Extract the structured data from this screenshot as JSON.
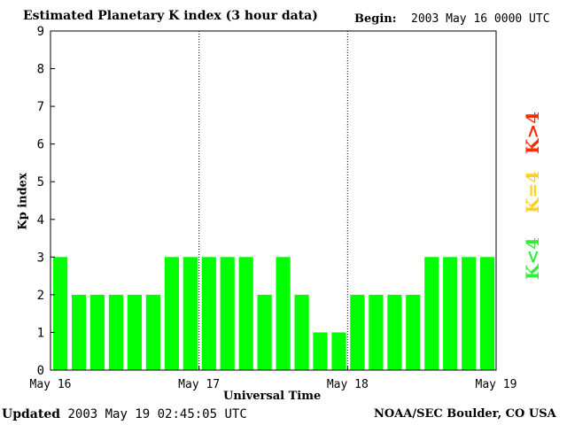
{
  "header": {
    "title": "Estimated Planetary K index (3 hour data)",
    "begin_label": "Begin:",
    "begin_value": "2003 May 16 0000 UTC"
  },
  "footer": {
    "updated_label": "Updated",
    "updated_value": "2003 May 19 02:45:05 UTC",
    "credit": "NOAA/SEC Boulder, CO USA"
  },
  "legend": {
    "high": "K>4",
    "equal": "K=4",
    "low": "K<4"
  },
  "colors": {
    "bar": "#00ff00",
    "low": "#33ee33",
    "equal": "#ffd21a",
    "high": "#ff2a00"
  },
  "chart_data": {
    "type": "bar",
    "title": "Estimated Planetary K index (3 hour data)",
    "xlabel": "Universal Time",
    "ylabel": "Kp index",
    "ylim": [
      0,
      9
    ],
    "yticks": [
      "0",
      "1",
      "2",
      "3",
      "4",
      "5",
      "6",
      "7",
      "8",
      "9"
    ],
    "day_labels": [
      "May 16",
      "May 17",
      "May 18",
      "May 19"
    ],
    "values": [
      3,
      2,
      2,
      2,
      2,
      2,
      3,
      3,
      3,
      3,
      3,
      2,
      3,
      2,
      1,
      1,
      2,
      2,
      2,
      2,
      3,
      3,
      3,
      3
    ],
    "grid": false
  }
}
